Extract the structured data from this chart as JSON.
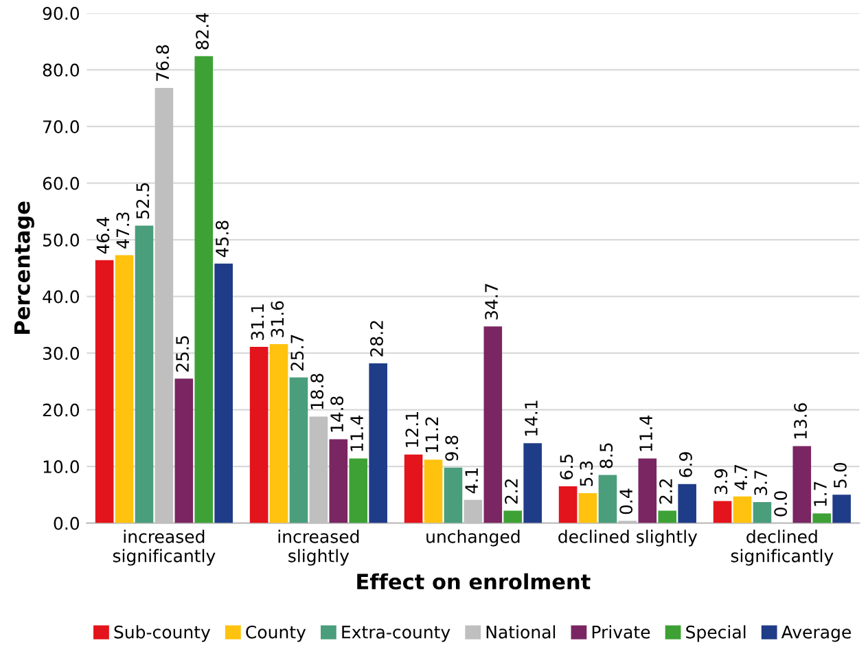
{
  "chart_data": {
    "type": "bar",
    "xlabel": "Effect on enrolment",
    "ylabel": "Percentage",
    "categories": [
      "increased\nsignificantly",
      "increased\nslightly",
      "unchanged",
      "declined slightly",
      "declined\nsignificantly"
    ],
    "series": [
      {
        "name": "Sub-county",
        "color": "#e3141b",
        "values": [
          46.4,
          31.1,
          12.1,
          6.5,
          3.9
        ],
        "value_labels": [
          "46.4",
          "31.1",
          "12.1",
          "6.5",
          "3.9"
        ]
      },
      {
        "name": "County",
        "color": "#ffc20e",
        "values": [
          47.3,
          31.6,
          11.2,
          5.3,
          4.7
        ],
        "value_labels": [
          "47.3",
          "31.6",
          "11.2",
          "5.3",
          "4.7"
        ]
      },
      {
        "name": "Extra-county",
        "color": "#4a9e7c",
        "values": [
          52.5,
          25.7,
          9.8,
          8.5,
          3.7
        ],
        "value_labels": [
          "52.5",
          "25.7",
          "9.8",
          "8.5",
          "3.7"
        ]
      },
      {
        "name": "National",
        "color": "#bfbfbf",
        "values": [
          76.8,
          18.8,
          4.1,
          0.4,
          0
        ],
        "value_labels": [
          "76.8",
          "18.8",
          "4.1",
          "0.4",
          "0.0"
        ]
      },
      {
        "name": "Private",
        "color": "#7a2662",
        "values": [
          25.5,
          14.8,
          34.7,
          11.4,
          13.6
        ],
        "value_labels": [
          "25.5",
          "14.8",
          "34.7",
          "11.4",
          "13.6"
        ]
      },
      {
        "name": "Special",
        "color": "#3ea135",
        "values": [
          82.4,
          11.4,
          2.2,
          2.2,
          1.7
        ],
        "value_labels": [
          "82.4",
          "11.4",
          "2.2",
          "2.2",
          "1.7"
        ]
      },
      {
        "name": "Average",
        "color": "#1f3c88",
        "values": [
          45.8,
          28.2,
          14.1,
          6.9,
          5
        ],
        "value_labels": [
          "45.8",
          "28.2",
          "14.1",
          "6.9",
          "5.0"
        ]
      }
    ],
    "ylim": [
      0,
      90
    ],
    "yticks": [
      {
        "value": 0,
        "label": "0.0"
      },
      {
        "value": 10,
        "label": "10.0"
      },
      {
        "value": 20,
        "label": "20.0"
      },
      {
        "value": 30,
        "label": "30.0"
      },
      {
        "value": 40,
        "label": "40.0"
      },
      {
        "value": 50,
        "label": "50.0"
      },
      {
        "value": 60,
        "label": "60.0"
      },
      {
        "value": 70,
        "label": "70.0"
      },
      {
        "value": 80,
        "label": "80.0"
      },
      {
        "value": 90,
        "label": "90.0"
      }
    ],
    "grid": "y",
    "legend": "bottom"
  }
}
